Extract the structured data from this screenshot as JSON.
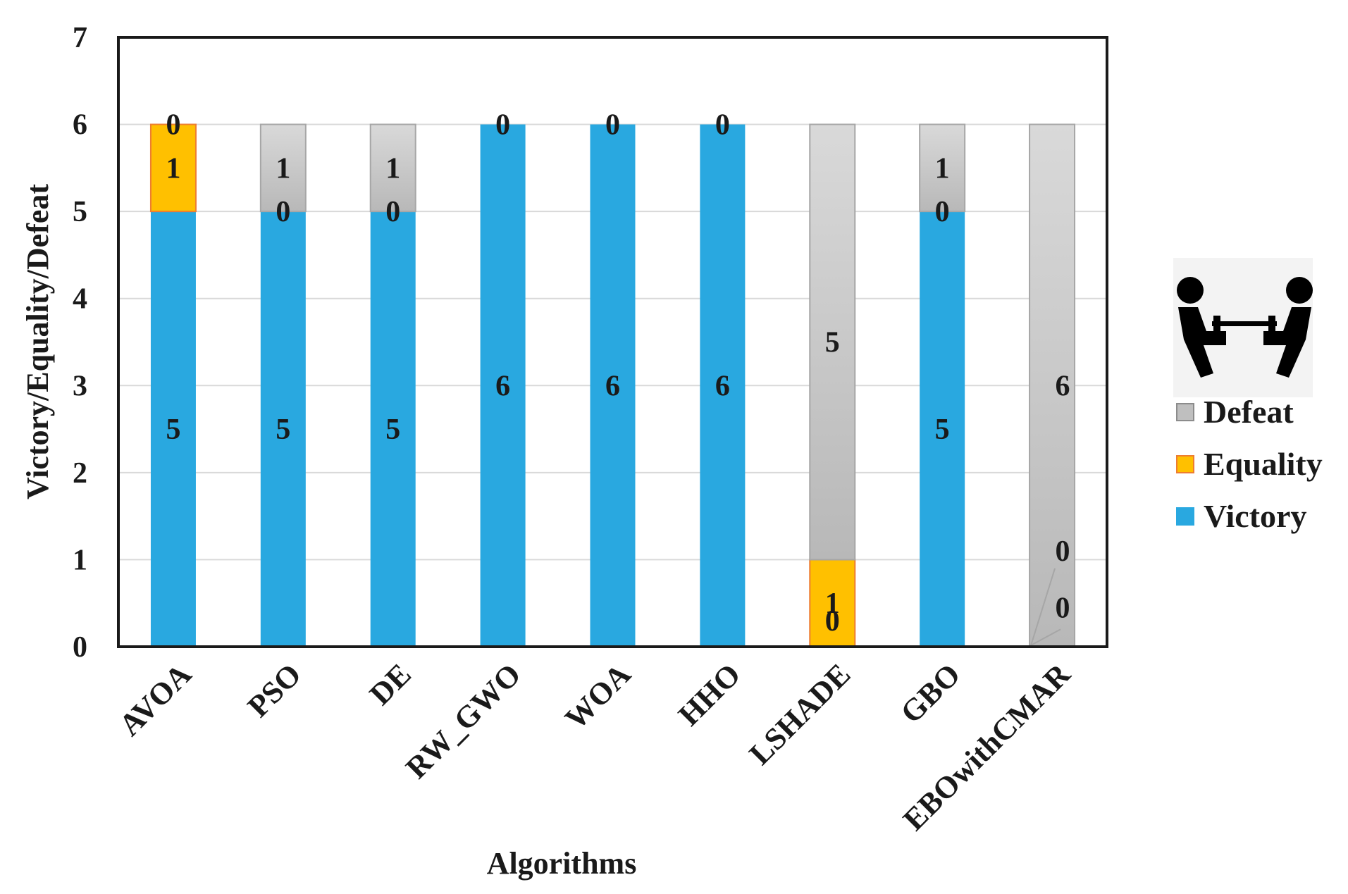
{
  "chart_data": {
    "type": "bar",
    "stacked": true,
    "title": "",
    "xlabel": "Algorithms",
    "ylabel": "Victory/Equality/Defeat",
    "ylim": [
      0,
      7
    ],
    "yticks": [
      "0",
      "1",
      "2",
      "3",
      "4",
      "5",
      "6",
      "7"
    ],
    "grid": true,
    "legend_position": "right",
    "legend_icon": "tug-of-war-icon",
    "categories": [
      "AVOA",
      "PSO",
      "DE",
      "RW_GWO",
      "WOA",
      "HHO",
      "LSHADE",
      "GBO",
      "EBOwithCMAR"
    ],
    "series": [
      {
        "name": "Victory",
        "color": "#29a8e0",
        "values": [
          5,
          5,
          5,
          6,
          6,
          6,
          0,
          5,
          0
        ]
      },
      {
        "name": "Equality",
        "color": "#ffc000",
        "values": [
          1,
          0,
          0,
          0,
          0,
          0,
          1,
          0,
          0
        ]
      },
      {
        "name": "Defeat",
        "color": "#bfbfbf",
        "values": [
          0,
          1,
          1,
          0,
          0,
          0,
          5,
          1,
          6
        ]
      }
    ],
    "labels": {
      "Victory": [
        "5",
        "5",
        "5",
        "6",
        "6",
        "6",
        "0",
        "5",
        "0"
      ],
      "Equality": [
        "1",
        "0",
        "0",
        "",
        "",
        "",
        "1",
        "0",
        "0"
      ],
      "Defeat": [
        "0",
        "1",
        "1",
        "0",
        "0",
        "0",
        "5",
        "1",
        "6"
      ]
    }
  }
}
